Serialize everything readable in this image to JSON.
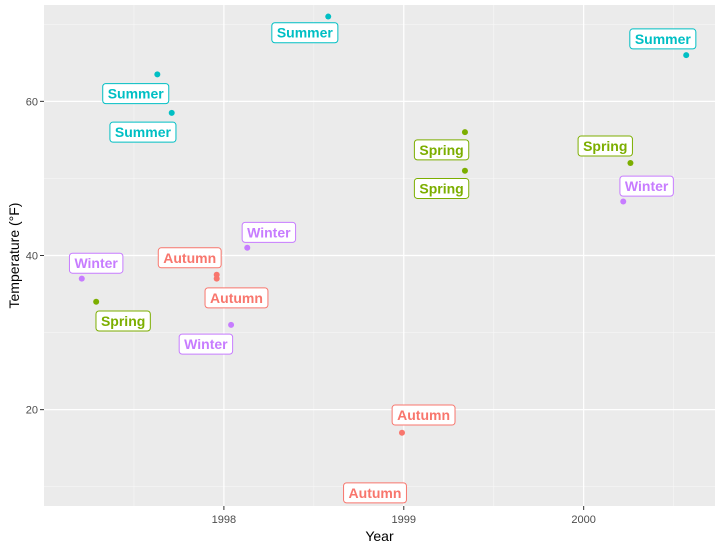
{
  "chart_data": {
    "type": "scatter",
    "title": "",
    "xlabel": "Year",
    "ylabel": "Temperature (°F)",
    "xlim": [
      1997.0,
      2000.73
    ],
    "ylim": [
      7.5,
      72.5
    ],
    "x_major_ticks": [
      1998,
      1999,
      2000
    ],
    "x_tick_labels": [
      "1998",
      "1999",
      "2000"
    ],
    "x_minor_ticks": [
      1997.5,
      1998.5,
      1999.5,
      2000.5
    ],
    "y_major_ticks": [
      20,
      40,
      60
    ],
    "y_tick_labels": [
      "20",
      "40",
      "60"
    ],
    "y_minor_ticks": [
      10,
      30,
      50,
      70
    ],
    "grid": true,
    "legend": "none",
    "colors": {
      "Autumn": "#F8766D",
      "Spring": "#7CAE00",
      "Summer": "#00BFC4",
      "Winter": "#C77CFF"
    },
    "points": [
      {
        "x": 1997.21,
        "y": 37.0,
        "season": "Winter",
        "lx": 1997.29,
        "ly": 39.0
      },
      {
        "x": 1997.29,
        "y": 34.0,
        "season": "Spring",
        "lx": 1997.44,
        "ly": 31.5
      },
      {
        "x": 1997.63,
        "y": 63.5,
        "season": "Summer",
        "lx": 1997.51,
        "ly": 61.0
      },
      {
        "x": 1997.71,
        "y": 58.5,
        "season": "Summer",
        "lx": 1997.55,
        "ly": 56.0
      },
      {
        "x": 1997.96,
        "y": 37.5,
        "season": "Autumn",
        "lx": 1997.81,
        "ly": 39.7
      },
      {
        "x": 1997.96,
        "y": 37.0,
        "season": "Autumn",
        "lx": 1998.07,
        "ly": 34.5
      },
      {
        "x": 1998.04,
        "y": 31.0,
        "season": "Winter",
        "lx": 1997.9,
        "ly": 28.5
      },
      {
        "x": 1998.13,
        "y": 41.0,
        "season": "Winter",
        "lx": 1998.25,
        "ly": 43.0
      },
      {
        "x": 1998.58,
        "y": 71.0,
        "season": "Summer",
        "lx": 1998.45,
        "ly": 68.9
      },
      {
        "x": 1998.99,
        "y": 17.0,
        "season": "Autumn",
        "lx": 1999.11,
        "ly": 19.3
      },
      {
        "x": 1998.99,
        "y": 10.0,
        "season": "Autumn",
        "lx": 1998.84,
        "ly": 9.2
      },
      {
        "x": 1999.34,
        "y": 56.0,
        "season": "Spring",
        "lx": 1999.21,
        "ly": 53.7
      },
      {
        "x": 1999.34,
        "y": 51.0,
        "season": "Spring",
        "lx": 1999.21,
        "ly": 48.7
      },
      {
        "x": 2000.22,
        "y": 47.0,
        "season": "Winter",
        "lx": 2000.35,
        "ly": 49.0
      },
      {
        "x": 2000.26,
        "y": 52.0,
        "season": "Spring",
        "lx": 2000.12,
        "ly": 54.2
      },
      {
        "x": 2000.57,
        "y": 66.0,
        "season": "Summer",
        "lx": 2000.44,
        "ly": 68.1
      }
    ]
  }
}
